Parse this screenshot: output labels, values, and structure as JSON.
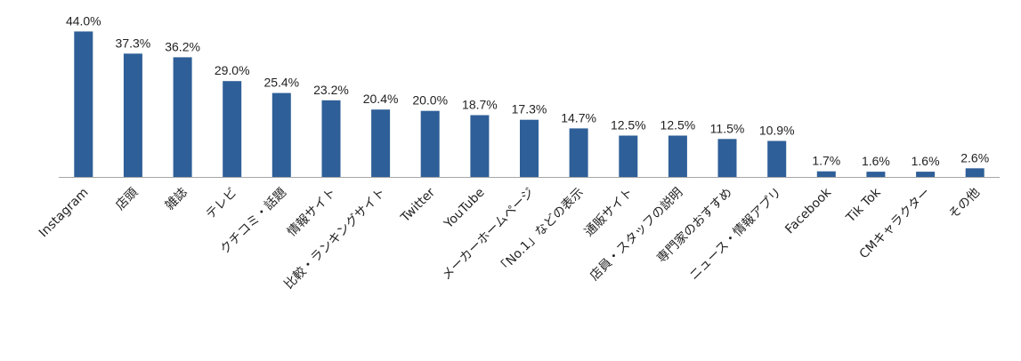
{
  "chart_data": {
    "type": "bar",
    "categories": [
      "Instagram",
      "店頭",
      "雑誌",
      "テレビ",
      "クチコミ・話題",
      "情報サイト",
      "比較・ランキングサイト",
      "Twitter",
      "YouTube",
      "メーカーホームページ",
      "「No.1」などの表示",
      "通販サイト",
      "店員・スタッフの説明",
      "専門家のおすすめ",
      "ニュース・情報アプリ",
      "Facebook",
      "Tik Tok",
      "CMキャラクター",
      "その他"
    ],
    "values": [
      44.0,
      37.3,
      36.2,
      29.0,
      25.4,
      23.2,
      20.4,
      20.0,
      18.7,
      17.3,
      14.7,
      12.5,
      12.5,
      11.5,
      10.9,
      1.7,
      1.6,
      1.6,
      2.6
    ],
    "value_labels": [
      "44.0%",
      "37.3%",
      "36.2%",
      "29.0%",
      "25.4%",
      "23.2%",
      "20.4%",
      "20.0%",
      "18.7%",
      "17.3%",
      "14.7%",
      "12.5%",
      "12.5%",
      "11.5%",
      "10.9%",
      "1.7%",
      "1.6%",
      "1.6%",
      "2.6%"
    ],
    "unit": "%",
    "ylim": [
      0,
      46
    ],
    "grid": false,
    "legend": "none",
    "bar_color": "#2E5F98",
    "axis_color": "#A6A6A6"
  }
}
